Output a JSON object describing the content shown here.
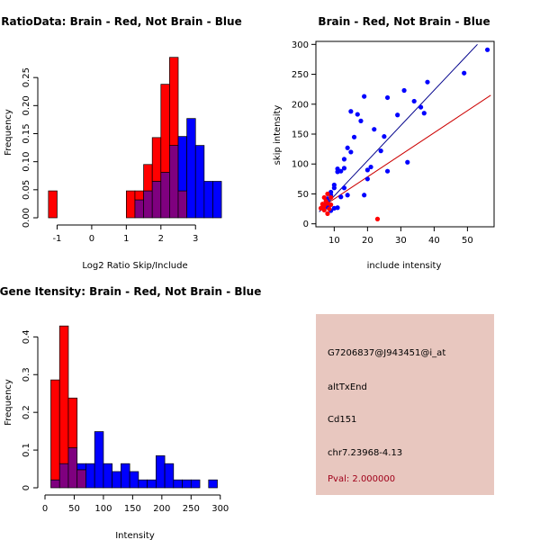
{
  "colors": {
    "brain": "#ff0000",
    "not_brain": "#0000ff",
    "overlap": "#7f007f",
    "brain_line": "#cc0000",
    "not_brain_line": "#00008b",
    "info_bg": "#e8c7bf",
    "pval_text": "#a0001a"
  },
  "chart_data": [
    {
      "id": "ratio",
      "type": "bar",
      "title": "RatioData: Brain - Red, Not Brain - Blue",
      "xlabel": "Log2 Ratio Skip/Include",
      "ylabel": "Frequency",
      "xlim": [
        -1.35,
        3.8
      ],
      "ylim": [
        0,
        0.3
      ],
      "bin_edges": [
        -1.25,
        -1.0,
        -0.75,
        -0.5,
        -0.25,
        0.0,
        0.25,
        0.5,
        0.75,
        1.0,
        1.25,
        1.5,
        1.75,
        2.0,
        2.25,
        2.5,
        2.75,
        3.0,
        3.25,
        3.5,
        3.75
      ],
      "series": [
        {
          "name": "Brain",
          "values": [
            0.048,
            0,
            0,
            0,
            0,
            0,
            0,
            0,
            0,
            0.048,
            0.048,
            0.095,
            0.143,
            0.238,
            0.286,
            0.048,
            0,
            0,
            0,
            0
          ]
        },
        {
          "name": "Not Brain",
          "values": [
            0,
            0,
            0,
            0,
            0,
            0,
            0,
            0,
            0,
            0,
            0.032,
            0.048,
            0.065,
            0.081,
            0.129,
            0.145,
            0.177,
            0.129,
            0.065,
            0.065
          ]
        }
      ],
      "xticks": [
        -1,
        0,
        1,
        2,
        3
      ],
      "yticks": [
        0.0,
        0.05,
        0.1,
        0.15,
        0.2,
        0.25
      ],
      "ytick_labels": [
        "0.00",
        "0.05",
        "0.10",
        "0.15",
        "0.20",
        "0.25"
      ]
    },
    {
      "id": "scatter",
      "type": "scatter",
      "title": "Brain - Red, Not Brain - Blue",
      "xlabel": "include intensity",
      "ylabel": "skip intensity",
      "xlim": [
        4.5,
        58
      ],
      "ylim": [
        -5,
        305
      ],
      "xticks": [
        10,
        20,
        30,
        40,
        50
      ],
      "yticks": [
        0,
        50,
        100,
        150,
        200,
        250,
        300
      ],
      "series": [
        {
          "name": "Not Brain",
          "points": [
            [
              56,
              291
            ],
            [
              49,
              252
            ],
            [
              38,
              237
            ],
            [
              34,
              205
            ],
            [
              36,
              195
            ],
            [
              37,
              185
            ],
            [
              31,
              223
            ],
            [
              29,
              182
            ],
            [
              26,
              211
            ],
            [
              22,
              158
            ],
            [
              19,
              213
            ],
            [
              18,
              172
            ],
            [
              15,
              188
            ],
            [
              17,
              183
            ],
            [
              16,
              145
            ],
            [
              14,
              127
            ],
            [
              15,
              120
            ],
            [
              13,
              108
            ],
            [
              13,
              93
            ],
            [
              12,
              88
            ],
            [
              11,
              87
            ],
            [
              11,
              92
            ],
            [
              10,
              65
            ],
            [
              10,
              60
            ],
            [
              9,
              53
            ],
            [
              9,
              48
            ],
            [
              8,
              42
            ],
            [
              8,
              36
            ],
            [
              7,
              31
            ],
            [
              8,
              28
            ],
            [
              10,
              26
            ],
            [
              9,
              22
            ],
            [
              11,
              27
            ],
            [
              12,
              45
            ],
            [
              19,
              48
            ],
            [
              20,
              90
            ],
            [
              21,
              95
            ],
            [
              20,
              75
            ],
            [
              24,
              122
            ],
            [
              25,
              146
            ],
            [
              26,
              88
            ],
            [
              32,
              103
            ],
            [
              14,
              48
            ],
            [
              13,
              60
            ]
          ],
          "fit": [
            [
              5.5,
              20
            ],
            [
              53,
              300
            ]
          ]
        },
        {
          "name": "Brain",
          "points": [
            [
              6,
              26
            ],
            [
              6.5,
              33
            ],
            [
              7,
              30
            ],
            [
              7,
              23
            ],
            [
              7.5,
              38
            ],
            [
              8,
              34
            ],
            [
              8,
              17
            ],
            [
              8.5,
              25
            ],
            [
              9,
              32
            ],
            [
              9,
              44
            ],
            [
              7,
              44
            ],
            [
              8,
              50
            ],
            [
              6.5,
              28
            ],
            [
              23,
              8
            ]
          ],
          "fit": [
            [
              5.5,
              25
            ],
            [
              57,
              215
            ]
          ]
        }
      ]
    },
    {
      "id": "intensity",
      "type": "bar",
      "title": "Gene Itensity: Brain - Red, Not Brain - Blue",
      "xlabel": "Intensity",
      "ylabel": "Frequency",
      "xlim": [
        0,
        305
      ],
      "ylim": [
        0,
        0.47
      ],
      "bin_edges": [
        10,
        25,
        40,
        55,
        70,
        85,
        100,
        115,
        130,
        145,
        160,
        175,
        190,
        205,
        220,
        235,
        250,
        265,
        280,
        295
      ],
      "series": [
        {
          "name": "Brain",
          "values": [
            0.286,
            0.429,
            0.238,
            0.048,
            0,
            0,
            0,
            0,
            0,
            0,
            0,
            0,
            0,
            0,
            0,
            0,
            0,
            0,
            0
          ]
        },
        {
          "name": "Not Brain",
          "values": [
            0.021,
            0.064,
            0.106,
            0.064,
            0.064,
            0.149,
            0.064,
            0.043,
            0.064,
            0.043,
            0.021,
            0.021,
            0.085,
            0.064,
            0.021,
            0.021,
            0.021,
            0.0,
            0.021
          ]
        }
      ],
      "xticks": [
        0,
        50,
        100,
        150,
        200,
        250,
        300
      ],
      "yticks": [
        0.0,
        0.1,
        0.2,
        0.3,
        0.4
      ]
    }
  ],
  "info": {
    "probe_id": "G7206837@J943451@i_at",
    "event_type": "altTxEnd",
    "gene": "Cd151",
    "location": "chr7.23968-4.13",
    "pval": "Pval: 2.000000"
  }
}
